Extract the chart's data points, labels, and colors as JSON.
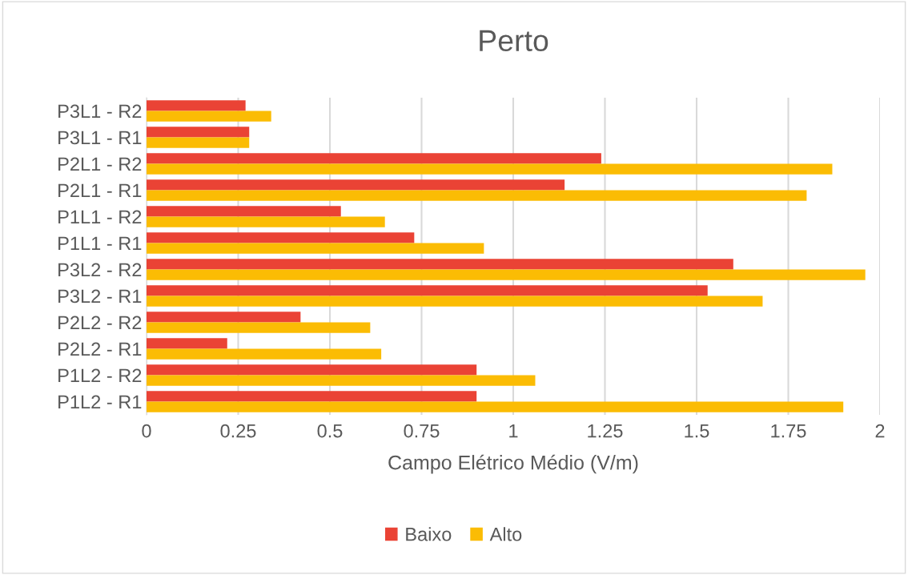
{
  "chart_data": {
    "type": "bar",
    "orientation": "horizontal",
    "title": "Perto",
    "xlabel": "Campo Elétrico Médio (V/m)",
    "categories": [
      "P3L1 - R2",
      "P3L1 - R1",
      "P2L1 - R2",
      "P2L1 - R1",
      "P1L1 - R2",
      "P1L1 - R1",
      "P3L2 - R2",
      "P3L2 - R1",
      "P2L2 - R2",
      "P2L2 - R1",
      "P1L2 - R2",
      "P1L2 - R1"
    ],
    "series": [
      {
        "name": "Baixo",
        "color": "#ea4335",
        "values": [
          0.27,
          0.28,
          1.24,
          1.14,
          0.53,
          0.73,
          1.6,
          1.53,
          0.42,
          0.22,
          0.9,
          0.9
        ]
      },
      {
        "name": "Alto",
        "color": "#fbbc04",
        "values": [
          0.34,
          0.28,
          1.87,
          1.8,
          0.65,
          0.92,
          1.96,
          1.68,
          0.61,
          0.64,
          1.06,
          1.9
        ]
      }
    ],
    "xlim": [
      0,
      2
    ],
    "xticks": [
      0,
      0.25,
      0.5,
      0.75,
      1,
      1.25,
      1.5,
      1.75,
      2
    ],
    "grid": "x",
    "legend": "bottom"
  }
}
